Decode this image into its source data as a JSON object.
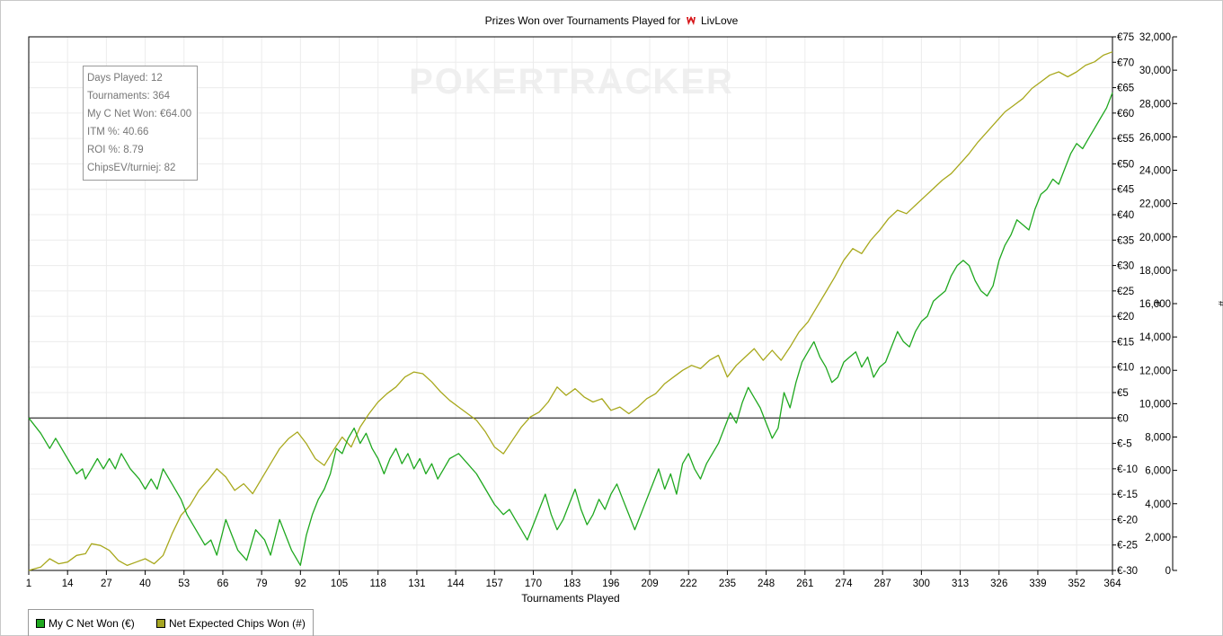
{
  "window": {
    "title_prefix": "Prizes Won over Tournaments Played for",
    "player": "LivLove",
    "watermark": "POKERTRACKER"
  },
  "stats": {
    "days_played": "Days Played: 12",
    "tournaments": "Tournaments: 364",
    "net_won": "My C Net Won: €64.00",
    "itm": "ITM %: 40.66",
    "roi": "ROI %: 8.79",
    "chipsev": "ChipsEV/turniej: 82"
  },
  "legend": {
    "net_won": "My C Net Won (€)",
    "expected_chips": "Net Expected Chips Won (#)"
  },
  "colors": {
    "net_won": "#1fa81f",
    "expected_chips": "#a8a81c",
    "legend_net": "#1fa81f",
    "legend_chips": "#a6a623",
    "logo": "#d7191c"
  },
  "chart_data": {
    "type": "line",
    "title": "Prizes Won over Tournaments Played for LivLove",
    "xlabel": "Tournaments Played",
    "ylabel": "€",
    "y2label": "#",
    "x_ticks": [
      1,
      14,
      27,
      40,
      53,
      66,
      79,
      92,
      105,
      118,
      131,
      144,
      157,
      170,
      183,
      196,
      209,
      222,
      235,
      248,
      261,
      274,
      287,
      300,
      313,
      326,
      339,
      352,
      364
    ],
    "xlim": [
      1,
      364
    ],
    "y_ticks": [
      -30,
      -25,
      -20,
      -15,
      -10,
      -5,
      0,
      5,
      10,
      15,
      20,
      25,
      30,
      35,
      40,
      45,
      50,
      55,
      60,
      65,
      70,
      75
    ],
    "y_tick_labels": [
      "€-30",
      "€-25",
      "€-20",
      "€-15",
      "€-10",
      "€-5",
      "€0",
      "€5",
      "€10",
      "€15",
      "€20",
      "€25",
      "€30",
      "€35",
      "€40",
      "€45",
      "€50",
      "€55",
      "€60",
      "€65",
      "€70",
      "€75"
    ],
    "ylim": [
      -30,
      75
    ],
    "y2_ticks": [
      0,
      2000,
      4000,
      6000,
      8000,
      10000,
      12000,
      14000,
      16000,
      18000,
      20000,
      22000,
      24000,
      26000,
      28000,
      30000,
      32000
    ],
    "y2_tick_labels": [
      "0",
      "2,000",
      "4,000",
      "6,000",
      "8,000",
      "10,000",
      "12,000",
      "14,000",
      "16,000",
      "18,000",
      "20,000",
      "22,000",
      "24,000",
      "26,000",
      "28,000",
      "30,000",
      "32,000"
    ],
    "y2lim": [
      0,
      32000
    ],
    "grid": true,
    "legend_position": "bottom-left",
    "series": [
      {
        "name": "My C Net Won (€)",
        "axis": "left",
        "points": [
          [
            1,
            0
          ],
          [
            5,
            -3
          ],
          [
            8,
            -6
          ],
          [
            10,
            -4
          ],
          [
            14,
            -8
          ],
          [
            17,
            -11
          ],
          [
            19,
            -10
          ],
          [
            20,
            -12
          ],
          [
            22,
            -10
          ],
          [
            24,
            -8
          ],
          [
            26,
            -10
          ],
          [
            28,
            -8
          ],
          [
            30,
            -10
          ],
          [
            32,
            -7
          ],
          [
            35,
            -10
          ],
          [
            38,
            -12
          ],
          [
            40,
            -14
          ],
          [
            42,
            -12
          ],
          [
            44,
            -14
          ],
          [
            46,
            -10
          ],
          [
            49,
            -13
          ],
          [
            52,
            -16
          ],
          [
            54,
            -19
          ],
          [
            57,
            -22
          ],
          [
            60,
            -25
          ],
          [
            62,
            -24
          ],
          [
            64,
            -27
          ],
          [
            67,
            -20
          ],
          [
            69,
            -23
          ],
          [
            71,
            -26
          ],
          [
            74,
            -28
          ],
          [
            77,
            -22
          ],
          [
            80,
            -24
          ],
          [
            82,
            -27
          ],
          [
            85,
            -20
          ],
          [
            87,
            -23
          ],
          [
            89,
            -26
          ],
          [
            92,
            -29
          ],
          [
            94,
            -23
          ],
          [
            96,
            -19
          ],
          [
            98,
            -16
          ],
          [
            100,
            -14
          ],
          [
            102,
            -11
          ],
          [
            104,
            -6
          ],
          [
            106,
            -7
          ],
          [
            108,
            -4
          ],
          [
            110,
            -2
          ],
          [
            112,
            -5
          ],
          [
            114,
            -3
          ],
          [
            116,
            -6
          ],
          [
            118,
            -8
          ],
          [
            120,
            -11
          ],
          [
            122,
            -8
          ],
          [
            124,
            -6
          ],
          [
            126,
            -9
          ],
          [
            128,
            -7
          ],
          [
            130,
            -10
          ],
          [
            132,
            -8
          ],
          [
            134,
            -11
          ],
          [
            136,
            -9
          ],
          [
            138,
            -12
          ],
          [
            140,
            -10
          ],
          [
            142,
            -8
          ],
          [
            145,
            -7
          ],
          [
            148,
            -9
          ],
          [
            151,
            -11
          ],
          [
            154,
            -14
          ],
          [
            157,
            -17
          ],
          [
            160,
            -19
          ],
          [
            162,
            -18
          ],
          [
            164,
            -20
          ],
          [
            166,
            -22
          ],
          [
            168,
            -24
          ],
          [
            170,
            -21
          ],
          [
            172,
            -18
          ],
          [
            174,
            -15
          ],
          [
            176,
            -19
          ],
          [
            178,
            -22
          ],
          [
            180,
            -20
          ],
          [
            182,
            -17
          ],
          [
            184,
            -14
          ],
          [
            186,
            -18
          ],
          [
            188,
            -21
          ],
          [
            190,
            -19
          ],
          [
            192,
            -16
          ],
          [
            194,
            -18
          ],
          [
            196,
            -15
          ],
          [
            198,
            -13
          ],
          [
            200,
            -16
          ],
          [
            202,
            -19
          ],
          [
            204,
            -22
          ],
          [
            206,
            -19
          ],
          [
            208,
            -16
          ],
          [
            210,
            -13
          ],
          [
            212,
            -10
          ],
          [
            214,
            -14
          ],
          [
            216,
            -11
          ],
          [
            218,
            -15
          ],
          [
            220,
            -9
          ],
          [
            222,
            -7
          ],
          [
            224,
            -10
          ],
          [
            226,
            -12
          ],
          [
            228,
            -9
          ],
          [
            230,
            -7
          ],
          [
            232,
            -5
          ],
          [
            234,
            -2
          ],
          [
            236,
            1
          ],
          [
            238,
            -1
          ],
          [
            240,
            3
          ],
          [
            242,
            6
          ],
          [
            244,
            4
          ],
          [
            246,
            2
          ],
          [
            248,
            -1
          ],
          [
            250,
            -4
          ],
          [
            252,
            -2
          ],
          [
            254,
            5
          ],
          [
            256,
            2
          ],
          [
            258,
            7
          ],
          [
            260,
            11
          ],
          [
            262,
            13
          ],
          [
            264,
            15
          ],
          [
            266,
            12
          ],
          [
            268,
            10
          ],
          [
            270,
            7
          ],
          [
            272,
            8
          ],
          [
            274,
            11
          ],
          [
            276,
            12
          ],
          [
            278,
            13
          ],
          [
            280,
            10
          ],
          [
            282,
            12
          ],
          [
            284,
            8
          ],
          [
            286,
            10
          ],
          [
            288,
            11
          ],
          [
            290,
            14
          ],
          [
            292,
            17
          ],
          [
            294,
            15
          ],
          [
            296,
            14
          ],
          [
            298,
            17
          ],
          [
            300,
            19
          ],
          [
            302,
            20
          ],
          [
            304,
            23
          ],
          [
            306,
            24
          ],
          [
            308,
            25
          ],
          [
            310,
            28
          ],
          [
            312,
            30
          ],
          [
            314,
            31
          ],
          [
            316,
            30
          ],
          [
            318,
            27
          ],
          [
            320,
            25
          ],
          [
            322,
            24
          ],
          [
            324,
            26
          ],
          [
            326,
            31
          ],
          [
            328,
            34
          ],
          [
            330,
            36
          ],
          [
            332,
            39
          ],
          [
            334,
            38
          ],
          [
            336,
            37
          ],
          [
            338,
            41
          ],
          [
            340,
            44
          ],
          [
            342,
            45
          ],
          [
            344,
            47
          ],
          [
            346,
            46
          ],
          [
            348,
            49
          ],
          [
            350,
            52
          ],
          [
            352,
            54
          ],
          [
            354,
            53
          ],
          [
            356,
            55
          ],
          [
            358,
            57
          ],
          [
            360,
            59
          ],
          [
            362,
            61
          ],
          [
            364,
            64
          ]
        ]
      },
      {
        "name": "Net Expected Chips Won (#)",
        "axis": "right",
        "points": [
          [
            1,
            0
          ],
          [
            5,
            200
          ],
          [
            8,
            700
          ],
          [
            11,
            400
          ],
          [
            14,
            500
          ],
          [
            17,
            900
          ],
          [
            20,
            1000
          ],
          [
            22,
            1600
          ],
          [
            25,
            1500
          ],
          [
            28,
            1200
          ],
          [
            31,
            600
          ],
          [
            34,
            300
          ],
          [
            37,
            500
          ],
          [
            40,
            700
          ],
          [
            43,
            400
          ],
          [
            46,
            900
          ],
          [
            49,
            2200
          ],
          [
            52,
            3300
          ],
          [
            55,
            3900
          ],
          [
            58,
            4800
          ],
          [
            61,
            5400
          ],
          [
            64,
            6100
          ],
          [
            67,
            5600
          ],
          [
            70,
            4800
          ],
          [
            73,
            5200
          ],
          [
            76,
            4600
          ],
          [
            79,
            5500
          ],
          [
            82,
            6400
          ],
          [
            85,
            7300
          ],
          [
            88,
            7900
          ],
          [
            91,
            8300
          ],
          [
            94,
            7600
          ],
          [
            97,
            6700
          ],
          [
            100,
            6300
          ],
          [
            103,
            7200
          ],
          [
            106,
            8000
          ],
          [
            109,
            7400
          ],
          [
            112,
            8600
          ],
          [
            115,
            9400
          ],
          [
            118,
            10100
          ],
          [
            121,
            10600
          ],
          [
            124,
            11000
          ],
          [
            127,
            11600
          ],
          [
            130,
            11900
          ],
          [
            133,
            11800
          ],
          [
            136,
            11300
          ],
          [
            139,
            10700
          ],
          [
            142,
            10200
          ],
          [
            145,
            9800
          ],
          [
            148,
            9400
          ],
          [
            151,
            9000
          ],
          [
            154,
            8300
          ],
          [
            157,
            7400
          ],
          [
            160,
            7000
          ],
          [
            163,
            7800
          ],
          [
            166,
            8600
          ],
          [
            169,
            9200
          ],
          [
            172,
            9500
          ],
          [
            175,
            10100
          ],
          [
            178,
            11000
          ],
          [
            181,
            10500
          ],
          [
            184,
            10900
          ],
          [
            187,
            10400
          ],
          [
            190,
            10100
          ],
          [
            193,
            10300
          ],
          [
            196,
            9600
          ],
          [
            199,
            9800
          ],
          [
            202,
            9400
          ],
          [
            205,
            9800
          ],
          [
            208,
            10300
          ],
          [
            211,
            10600
          ],
          [
            214,
            11200
          ],
          [
            217,
            11600
          ],
          [
            220,
            12000
          ],
          [
            223,
            12300
          ],
          [
            226,
            12100
          ],
          [
            229,
            12600
          ],
          [
            232,
            12900
          ],
          [
            235,
            11600
          ],
          [
            238,
            12300
          ],
          [
            241,
            12800
          ],
          [
            244,
            13300
          ],
          [
            247,
            12600
          ],
          [
            250,
            13200
          ],
          [
            253,
            12600
          ],
          [
            256,
            13400
          ],
          [
            259,
            14300
          ],
          [
            262,
            14900
          ],
          [
            265,
            15800
          ],
          [
            268,
            16700
          ],
          [
            271,
            17600
          ],
          [
            274,
            18600
          ],
          [
            277,
            19300
          ],
          [
            280,
            19000
          ],
          [
            283,
            19800
          ],
          [
            286,
            20400
          ],
          [
            289,
            21100
          ],
          [
            292,
            21600
          ],
          [
            295,
            21400
          ],
          [
            298,
            21900
          ],
          [
            301,
            22400
          ],
          [
            304,
            22900
          ],
          [
            307,
            23400
          ],
          [
            310,
            23800
          ],
          [
            313,
            24400
          ],
          [
            316,
            25000
          ],
          [
            319,
            25700
          ],
          [
            322,
            26300
          ],
          [
            325,
            26900
          ],
          [
            328,
            27500
          ],
          [
            331,
            27900
          ],
          [
            334,
            28300
          ],
          [
            337,
            28900
          ],
          [
            340,
            29300
          ],
          [
            343,
            29700
          ],
          [
            346,
            29900
          ],
          [
            349,
            29600
          ],
          [
            352,
            29900
          ],
          [
            355,
            30300
          ],
          [
            358,
            30500
          ],
          [
            361,
            30900
          ],
          [
            364,
            31100
          ]
        ]
      }
    ]
  }
}
